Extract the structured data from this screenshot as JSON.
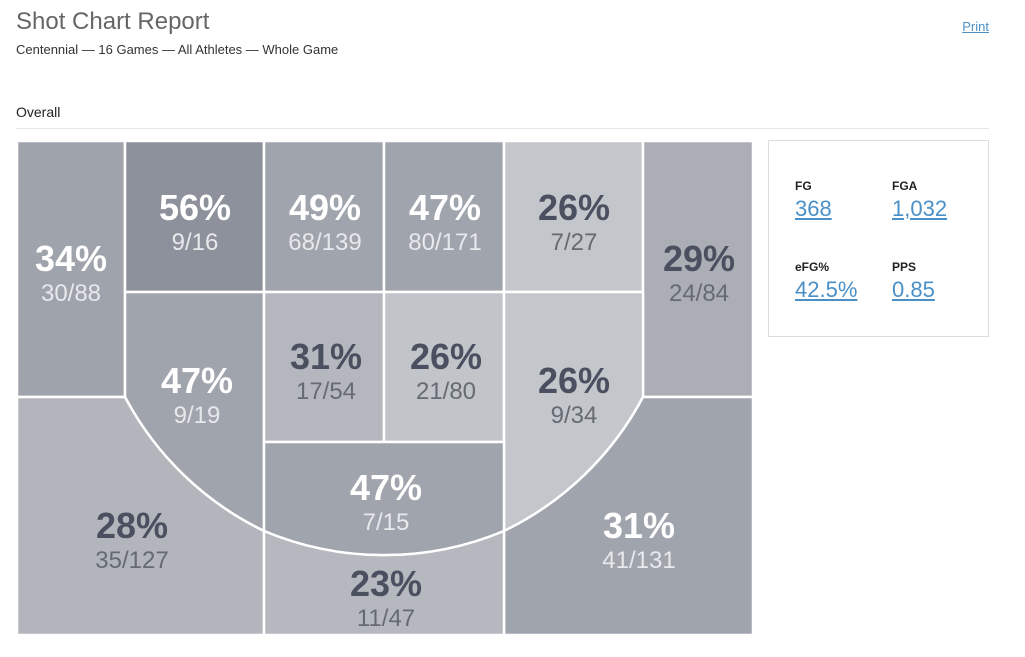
{
  "header": {
    "title": "Shot Chart Report",
    "subtitle": "Centennial — 16 Games — All Athletes — Whole Game",
    "print_label": "Print"
  },
  "section": {
    "title": "Overall"
  },
  "zones": [
    {
      "id": "left-corner-3",
      "pct": "34%",
      "made_attempted": "30/88",
      "fill": "#9fa3ab",
      "text": "light"
    },
    {
      "id": "left-mid-high",
      "pct": "56%",
      "made_attempted": "9/16",
      "fill": "#8c919b",
      "text": "light"
    },
    {
      "id": "paint-top-left",
      "pct": "49%",
      "made_attempted": "68/139",
      "fill": "#a0a4ac",
      "text": "light"
    },
    {
      "id": "paint-top-right",
      "pct": "47%",
      "made_attempted": "80/171",
      "fill": "#a0a4ac",
      "text": "light"
    },
    {
      "id": "right-mid-high",
      "pct": "26%",
      "made_attempted": "7/27",
      "fill": "#c3c6cb",
      "text": "dark"
    },
    {
      "id": "right-corner-3",
      "pct": "29%",
      "made_attempted": "24/84",
      "fill": "#abaeb5",
      "text": "dark"
    },
    {
      "id": "left-mid-low",
      "pct": "47%",
      "made_attempted": "9/19",
      "fill": "#a0a4ac",
      "text": "light"
    },
    {
      "id": "paint-low-left",
      "pct": "31%",
      "made_attempted": "17/54",
      "fill": "#b4b7bd",
      "text": "dark"
    },
    {
      "id": "paint-low-right",
      "pct": "26%",
      "made_attempted": "21/80",
      "fill": "#c1c4c9",
      "text": "dark"
    },
    {
      "id": "right-mid-low",
      "pct": "26%",
      "made_attempted": "9/34",
      "fill": "#c3c6cb",
      "text": "dark"
    },
    {
      "id": "left-wing-3",
      "pct": "28%",
      "made_attempted": "35/127",
      "fill": "#b2b5bb",
      "text": "dark"
    },
    {
      "id": "top-key-mid",
      "pct": "47%",
      "made_attempted": "7/15",
      "fill": "#a0a4ac",
      "text": "light"
    },
    {
      "id": "right-wing-3",
      "pct": "31%",
      "made_attempted": "41/131",
      "fill": "#a0a4ac",
      "text": "light"
    },
    {
      "id": "top-key-3",
      "pct": "23%",
      "made_attempted": "11/47",
      "fill": "#b5b8be",
      "text": "dark"
    }
  ],
  "stats": {
    "fg": {
      "label": "FG",
      "value": "368"
    },
    "fga": {
      "label": "FGA",
      "value": "1,032"
    },
    "efg": {
      "label": "eFG%",
      "value": "42.5%"
    },
    "pps": {
      "label": "PPS",
      "value": "0.85"
    }
  }
}
